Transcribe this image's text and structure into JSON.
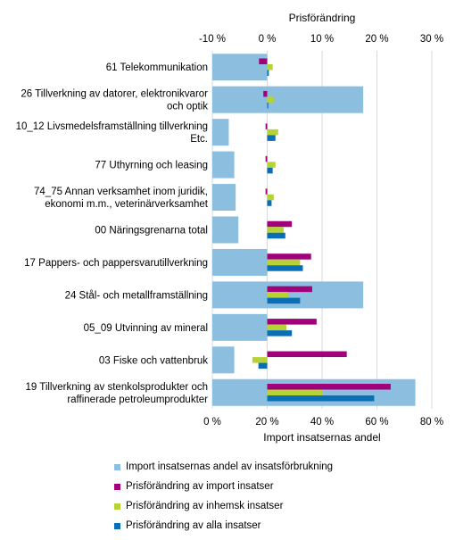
{
  "chart_data": {
    "type": "bar",
    "orientation": "horizontal",
    "top_axis": {
      "title": "Prisförändring",
      "ticks": [
        "-10 %",
        "0 %",
        "10 %",
        "20 %",
        "30 %"
      ],
      "range": [
        -10,
        30
      ],
      "unit": "%"
    },
    "bottom_axis": {
      "title": "Import insatsernas andel",
      "ticks": [
        "0 %",
        "20 %",
        "40 %",
        "60 %",
        "80 %"
      ],
      "range": [
        0,
        80
      ],
      "unit": "%"
    },
    "grid": true,
    "legend_position": "bottom",
    "categories": [
      [
        "61 Telekommunikation"
      ],
      [
        "26 Tillverkning av datorer, elektronikvaror",
        "och optik"
      ],
      [
        "10_12 Livsmedelsframställning tillverkning",
        "Etc."
      ],
      [
        "77 Uthyrning och leasing"
      ],
      [
        "74_75 Annan verksamhet inom juridik,",
        "ekonomi m.m., veterinärverksamhet"
      ],
      [
        "00 Näringsgrenarna total"
      ],
      [
        "17 Pappers- och pappersvarutillverkning"
      ],
      [
        "24 Stål- och metallframställning"
      ],
      [
        "05_09 Utvinning av mineral"
      ],
      [
        "03 Fiske och vattenbruk"
      ],
      [
        "19 Tillverkning av stenkolsprodukter och",
        "raffinerade petroleumprodukter"
      ]
    ],
    "series": [
      {
        "name": "Import insatsernas andel av insatsförbrukning",
        "axis": "bottom",
        "color": "#8cbfdf",
        "values": [
          20,
          55,
          6,
          8,
          8.5,
          9.5,
          20,
          55,
          20,
          8,
          74
        ]
      },
      {
        "name": "Prisförändring av import insatser",
        "axis": "top",
        "color": "#a0007a",
        "values": [
          -1.5,
          -0.7,
          -0.3,
          -0.3,
          -0.3,
          4.5,
          8,
          8.2,
          9,
          14.5,
          22.5
        ]
      },
      {
        "name": "Prisförändring av inhemsk insatser",
        "axis": "top",
        "color": "#b5d334",
        "values": [
          1,
          1.2,
          2,
          1.5,
          1.2,
          3,
          6,
          3.8,
          3.5,
          -2.7,
          10
        ]
      },
      {
        "name": "Prisförändring av alla insatser",
        "axis": "top",
        "color": "#0a6eb4",
        "values": [
          0.3,
          0.2,
          1.5,
          1,
          0.8,
          3.3,
          6.5,
          6,
          4.5,
          -1.6,
          19.5
        ]
      }
    ]
  }
}
